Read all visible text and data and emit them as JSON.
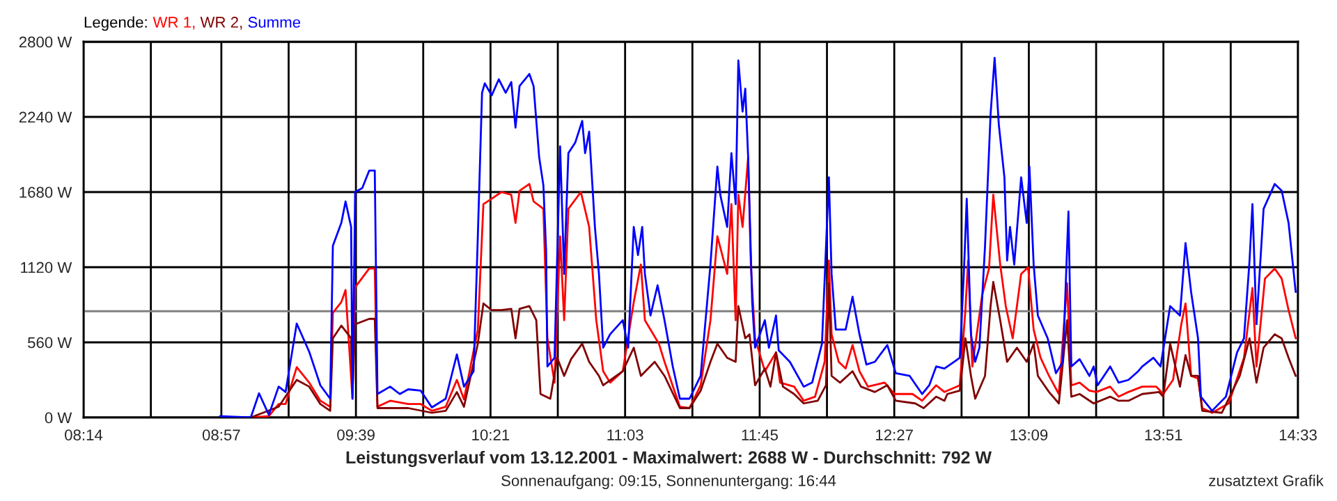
{
  "chart_data": {
    "type": "line",
    "title": "Leistungsverlauf vom 13.12.2001 - Maximalwert: 2688 W - Durchschnitt: 792 W",
    "subtitle": "Sonnenaufgang: 09:15, Sonnenuntergang: 16:44",
    "annotations": [
      "zusatztext Grafik"
    ],
    "legend_title": "Legende:",
    "legend": "top left",
    "grid": true,
    "marker": "none",
    "line_style": "solid",
    "xlim": [
      8.2333,
      14.55
    ],
    "xticks": [
      {
        "value": 8.2333,
        "label": "08:14"
      },
      {
        "value": 8.5833,
        "label": null
      },
      {
        "value": 8.95,
        "label": "08:57"
      },
      {
        "value": 9.3,
        "label": null
      },
      {
        "value": 9.65,
        "label": "09:39"
      },
      {
        "value": 10.0,
        "label": null
      },
      {
        "value": 10.35,
        "label": "10:21"
      },
      {
        "value": 10.7,
        "label": null
      },
      {
        "value": 11.05,
        "label": "11:03"
      },
      {
        "value": 11.4,
        "label": null
      },
      {
        "value": 11.75,
        "label": "11:45"
      },
      {
        "value": 12.1,
        "label": null
      },
      {
        "value": 12.45,
        "label": "12:27"
      },
      {
        "value": 12.8,
        "label": null
      },
      {
        "value": 13.15,
        "label": "13:09"
      },
      {
        "value": 13.5,
        "label": null
      },
      {
        "value": 13.85,
        "label": "13:51"
      },
      {
        "value": 14.2,
        "label": null
      },
      {
        "value": 14.55,
        "label": "14:33"
      }
    ],
    "ylim": [
      0,
      2800
    ],
    "yticks": [
      {
        "value": 0,
        "label": "0 W"
      },
      {
        "value": 560,
        "label": "560 W"
      },
      {
        "value": 1120,
        "label": "1120 W"
      },
      {
        "value": 1680,
        "label": "1680 W"
      },
      {
        "value": 2240,
        "label": "2240 W"
      },
      {
        "value": 2800,
        "label": "2800 W"
      }
    ],
    "ref_lines": [
      {
        "axis": "y",
        "value": 792,
        "color": "#808080"
      }
    ],
    "series": [
      {
        "name": "WR 1,",
        "color": "#ff0000",
        "x": [
          9.103,
          9.197,
          9.248,
          9.284,
          9.342,
          9.407,
          9.465,
          9.516,
          9.53,
          9.574,
          9.596,
          9.632,
          9.646,
          9.719,
          9.748,
          9.762,
          9.828,
          9.922,
          9.987,
          10.045,
          10.117,
          10.175,
          10.212,
          10.284,
          10.313,
          10.356,
          10.407,
          10.458,
          10.48,
          10.501,
          10.552,
          10.574,
          10.625,
          10.646,
          10.683,
          10.712,
          10.733,
          10.755,
          10.82,
          10.863,
          10.9,
          10.936,
          10.972,
          11.038,
          11.095,
          11.132,
          11.153,
          11.226,
          11.255,
          11.335,
          11.385,
          11.443,
          11.494,
          11.53,
          11.581,
          11.603,
          11.625,
          11.639,
          11.661,
          11.69,
          11.704,
          11.726,
          11.777,
          11.835,
          11.856,
          11.929,
          11.979,
          12.038,
          12.088,
          12.11,
          12.124,
          12.161,
          12.197,
          12.233,
          12.269,
          12.313,
          12.4,
          12.451,
          12.545,
          12.595,
          12.668,
          12.711,
          12.726,
          12.791,
          12.82,
          12.834,
          12.856,
          12.907,
          12.943,
          12.965,
          13.001,
          13.03,
          13.066,
          13.11,
          13.146,
          13.175,
          13.211,
          13.255,
          13.306,
          13.349,
          13.371,
          13.414,
          13.465,
          13.501,
          13.573,
          13.617,
          13.668,
          13.74,
          13.813,
          13.849,
          13.9,
          13.943,
          13.965,
          13.994,
          14.03,
          14.052,
          14.103,
          14.19,
          14.269,
          14.313,
          14.334,
          14.378,
          14.429,
          14.465,
          14.501,
          14.538
        ],
        "values": [
          0,
          10,
          100,
          100,
          375,
          260,
          125,
          80,
          780,
          860,
          950,
          140,
          970,
          1110,
          1110,
          80,
          125,
          100,
          100,
          50,
          80,
          280,
          135,
          655,
          1590,
          1630,
          1680,
          1660,
          1450,
          1690,
          1740,
          1610,
          1555,
          590,
          260,
          1350,
          725,
          1555,
          1680,
          1420,
          725,
          345,
          260,
          345,
          860,
          1140,
          725,
          550,
          415,
          80,
          70,
          240,
          725,
          1350,
          1070,
          1590,
          725,
          1660,
          1420,
          1940,
          1140,
          590,
          345,
          485,
          260,
          230,
          125,
          155,
          415,
          1170,
          620,
          415,
          365,
          540,
          345,
          230,
          260,
          175,
          175,
          125,
          240,
          190,
          200,
          240,
          800,
          1170,
          380,
          910,
          1110,
          1660,
          1140,
          830,
          590,
          1070,
          1120,
          655,
          445,
          310,
          175,
          1000,
          240,
          260,
          200,
          190,
          230,
          155,
          190,
          230,
          230,
          175,
          280,
          695,
          850,
          310,
          290,
          70,
          35,
          105,
          445,
          965,
          380,
          1035,
          1110,
          1035,
          800,
          590
        ]
      },
      {
        "name": "WR 2,",
        "color": "#800000",
        "x": [
          9.103,
          9.248,
          9.342,
          9.407,
          9.465,
          9.516,
          9.53,
          9.574,
          9.625,
          9.632,
          9.646,
          9.719,
          9.748,
          9.762,
          9.922,
          10.045,
          10.117,
          10.175,
          10.212,
          10.284,
          10.313,
          10.356,
          10.407,
          10.458,
          10.48,
          10.501,
          10.552,
          10.588,
          10.61,
          10.661,
          10.697,
          10.733,
          10.769,
          10.827,
          10.863,
          10.914,
          10.936,
          11.038,
          11.095,
          11.132,
          11.204,
          11.255,
          11.335,
          11.385,
          11.443,
          11.494,
          11.53,
          11.581,
          11.625,
          11.639,
          11.675,
          11.697,
          11.726,
          11.777,
          11.806,
          11.835,
          11.871,
          11.929,
          11.979,
          12.052,
          12.095,
          12.11,
          12.124,
          12.168,
          12.233,
          12.277,
          12.349,
          12.414,
          12.458,
          12.559,
          12.603,
          12.668,
          12.711,
          12.726,
          12.791,
          12.82,
          12.849,
          12.871,
          12.922,
          12.951,
          12.965,
          13.001,
          13.037,
          13.088,
          13.139,
          13.175,
          13.197,
          13.255,
          13.306,
          13.349,
          13.371,
          13.414,
          13.487,
          13.573,
          13.617,
          13.668,
          13.74,
          13.827,
          13.849,
          13.885,
          13.936,
          13.965,
          13.994,
          14.03,
          14.052,
          14.154,
          14.247,
          14.298,
          14.334,
          14.371,
          14.429,
          14.465,
          14.501,
          14.538
        ],
        "values": [
          0,
          80,
          280,
          230,
          100,
          50,
          590,
          685,
          590,
          175,
          695,
          735,
          735,
          70,
          70,
          35,
          50,
          190,
          80,
          550,
          850,
          800,
          800,
          810,
          590,
          810,
          830,
          725,
          175,
          140,
          445,
          310,
          435,
          550,
          415,
          310,
          240,
          345,
          520,
          310,
          415,
          310,
          70,
          70,
          200,
          415,
          550,
          445,
          415,
          830,
          590,
          620,
          240,
          365,
          230,
          485,
          230,
          175,
          105,
          125,
          240,
          1000,
          310,
          260,
          345,
          230,
          190,
          240,
          125,
          105,
          70,
          155,
          125,
          175,
          200,
          590,
          310,
          140,
          310,
          830,
          1010,
          725,
          415,
          520,
          415,
          550,
          310,
          190,
          105,
          725,
          155,
          175,
          105,
          155,
          125,
          125,
          175,
          190,
          155,
          550,
          230,
          465,
          310,
          310,
          50,
          35,
          310,
          590,
          260,
          520,
          620,
          590,
          445,
          310
        ]
      },
      {
        "name": "Summe",
        "color": "#0000ff",
        "x": [
          8.943,
          9.103,
          9.146,
          9.197,
          9.248,
          9.284,
          9.342,
          9.407,
          9.465,
          9.516,
          9.53,
          9.574,
          9.596,
          9.625,
          9.632,
          9.646,
          9.683,
          9.719,
          9.748,
          9.762,
          9.828,
          9.878,
          9.922,
          9.987,
          10.045,
          10.117,
          10.175,
          10.212,
          10.262,
          10.284,
          10.306,
          10.32,
          10.356,
          10.393,
          10.429,
          10.458,
          10.48,
          10.501,
          10.552,
          10.574,
          10.603,
          10.625,
          10.639,
          10.646,
          10.683,
          10.712,
          10.733,
          10.755,
          10.791,
          10.827,
          10.842,
          10.863,
          10.893,
          10.914,
          10.936,
          10.972,
          11.038,
          11.066,
          11.095,
          11.117,
          11.139,
          11.153,
          11.182,
          11.219,
          11.255,
          11.298,
          11.335,
          11.385,
          11.443,
          11.494,
          11.53,
          11.545,
          11.581,
          11.603,
          11.625,
          11.639,
          11.661,
          11.675,
          11.69,
          11.711,
          11.726,
          11.777,
          11.798,
          11.835,
          11.849,
          11.907,
          11.979,
          12.023,
          12.074,
          12.11,
          12.124,
          12.146,
          12.197,
          12.233,
          12.269,
          12.305,
          12.349,
          12.414,
          12.458,
          12.53,
          12.595,
          12.632,
          12.668,
          12.711,
          12.762,
          12.791,
          12.813,
          12.827,
          12.849,
          12.871,
          12.893,
          12.922,
          12.951,
          12.972,
          12.994,
          13.023,
          13.037,
          13.052,
          13.074,
          13.11,
          13.139,
          13.153,
          13.175,
          13.197,
          13.248,
          13.291,
          13.327,
          13.356,
          13.371,
          13.414,
          13.465,
          13.487,
          13.508,
          13.573,
          13.617,
          13.668,
          13.719,
          13.74,
          13.798,
          13.835,
          13.885,
          13.936,
          13.965,
          13.994,
          14.03,
          14.045,
          14.103,
          14.175,
          14.233,
          14.269,
          14.298,
          14.313,
          14.334,
          14.371,
          14.429,
          14.465,
          14.501,
          14.538
        ],
        "values": [
          10,
          0,
          180,
          20,
          230,
          190,
          700,
          490,
          240,
          140,
          1280,
          1450,
          1610,
          1420,
          140,
          1680,
          1710,
          1840,
          1840,
          175,
          230,
          175,
          210,
          200,
          75,
          140,
          470,
          230,
          345,
          1350,
          2420,
          2490,
          2400,
          2520,
          2420,
          2500,
          2160,
          2470,
          2560,
          2470,
          1940,
          1730,
          1245,
          380,
          445,
          2020,
          1070,
          1970,
          2050,
          2210,
          1970,
          2130,
          1420,
          1070,
          520,
          620,
          725,
          520,
          1420,
          1210,
          1420,
          1070,
          760,
          985,
          725,
          380,
          140,
          140,
          310,
          1140,
          1870,
          1660,
          1420,
          1970,
          1590,
          2660,
          2280,
          2450,
          1940,
          860,
          520,
          725,
          520,
          760,
          500,
          415,
          230,
          260,
          550,
          1790,
          1070,
          655,
          655,
          900,
          620,
          395,
          415,
          540,
          330,
          310,
          175,
          240,
          380,
          365,
          415,
          445,
          1110,
          1630,
          620,
          415,
          520,
          1275,
          2260,
          2680,
          2180,
          1790,
          1170,
          1420,
          1140,
          1790,
          1450,
          1870,
          1140,
          760,
          590,
          330,
          415,
          1535,
          380,
          435,
          310,
          380,
          240,
          380,
          260,
          280,
          345,
          380,
          445,
          380,
          830,
          760,
          1300,
          935,
          590,
          155,
          50,
          155,
          485,
          590,
          1170,
          1590,
          695,
          1555,
          1740,
          1690,
          1450,
          935
        ]
      }
    ]
  }
}
